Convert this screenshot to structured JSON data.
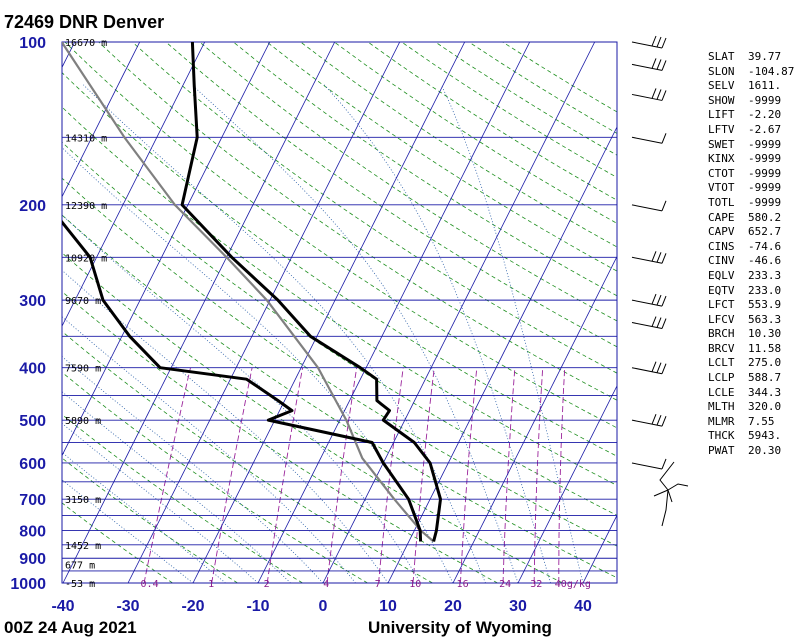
{
  "chart_data": {
    "type": "skew-t",
    "title": "72469 DNR Denver",
    "footer_left": "00Z 24 Aug 2021",
    "footer_right": "University of Wyoming",
    "x_ticks": [
      "-40",
      "-30",
      "-20",
      "-10",
      "0",
      "10",
      "20",
      "30",
      "40"
    ],
    "x_values": [
      -40,
      -30,
      -20,
      -10,
      0,
      10,
      20,
      30,
      40
    ],
    "xlim": [
      -40,
      45
    ],
    "ylim": [
      1000,
      100
    ],
    "y_log": true,
    "pressure_ticks": [
      {
        "p": 100,
        "label": "100"
      },
      {
        "p": 200,
        "label": "200"
      },
      {
        "p": 300,
        "label": "300"
      },
      {
        "p": 400,
        "label": "400"
      },
      {
        "p": 500,
        "label": "500"
      },
      {
        "p": 600,
        "label": "600"
      },
      {
        "p": 700,
        "label": "700"
      },
      {
        "p": 800,
        "label": "800"
      },
      {
        "p": 900,
        "label": "900"
      },
      {
        "p": 1000,
        "label": "1000"
      }
    ],
    "height_labels": [
      {
        "p": 100,
        "label": "16670 m"
      },
      {
        "p": 150,
        "label": "14310 m"
      },
      {
        "p": 200,
        "label": "12390 m"
      },
      {
        "p": 250,
        "label": "10920 m"
      },
      {
        "p": 300,
        "label": "9670 m"
      },
      {
        "p": 400,
        "label": "7590 m"
      },
      {
        "p": 500,
        "label": "5890 m"
      },
      {
        "p": 700,
        "label": "3150 m"
      },
      {
        "p": 850,
        "label": "1452 m"
      },
      {
        "p": 925,
        "label": "677 m"
      },
      {
        "p": 1000,
        "label": "-53 m"
      }
    ],
    "mixing_ratio_labels": [
      "0.4",
      "1",
      "2",
      "4",
      "7",
      "10",
      "16",
      "24",
      "32",
      "40g/kg"
    ],
    "temperature": [
      {
        "p": 838,
        "t": 13.8
      },
      {
        "p": 800,
        "t": 13.4
      },
      {
        "p": 700,
        "t": 11.6
      },
      {
        "p": 600,
        "t": 7.2
      },
      {
        "p": 550,
        "t": 3.2
      },
      {
        "p": 500,
        "t": -3.3
      },
      {
        "p": 480,
        "t": -3.1
      },
      {
        "p": 460,
        "t": -5.8
      },
      {
        "p": 420,
        "t": -7.5
      },
      {
        "p": 400,
        "t": -10.9
      },
      {
        "p": 350,
        "t": -21.0
      },
      {
        "p": 300,
        "t": -28.8
      },
      {
        "p": 250,
        "t": -39.2
      },
      {
        "p": 200,
        "t": -50.9
      },
      {
        "p": 150,
        "t": -53.8
      },
      {
        "p": 120,
        "t": -58.3
      },
      {
        "p": 100,
        "t": -61.9
      }
    ],
    "dewpoint": [
      {
        "p": 838,
        "t": 11.8
      },
      {
        "p": 800,
        "t": 10.9
      },
      {
        "p": 700,
        "t": 6.7
      },
      {
        "p": 600,
        "t": 0.0
      },
      {
        "p": 550,
        "t": -3.3
      },
      {
        "p": 500,
        "t": -21.0
      },
      {
        "p": 480,
        "t": -18.1
      },
      {
        "p": 460,
        "t": -21.0
      },
      {
        "p": 420,
        "t": -27.5
      },
      {
        "p": 400,
        "t": -41.7
      },
      {
        "p": 350,
        "t": -48.8
      },
      {
        "p": 300,
        "t": -55.7
      },
      {
        "p": 250,
        "t": -61.0
      },
      {
        "p": 200,
        "t": -71.5
      },
      {
        "p": 150,
        "t": -78.5
      },
      {
        "p": 120,
        "t": -85.7
      },
      {
        "p": 100,
        "t": -90.1
      }
    ],
    "parcel": [
      {
        "p": 838,
        "t": 13.8
      },
      {
        "p": 800,
        "t": 11.0
      },
      {
        "p": 700,
        "t": 4.5
      },
      {
        "p": 588,
        "t": -3.6
      },
      {
        "p": 500,
        "t": -9.0
      },
      {
        "p": 400,
        "t": -17.4
      },
      {
        "p": 300,
        "t": -30.5
      },
      {
        "p": 250,
        "t": -40.0
      },
      {
        "p": 200,
        "t": -52.0
      },
      {
        "p": 150,
        "t": -65.0
      },
      {
        "p": 100,
        "t": -82.0
      }
    ],
    "wind_barbs_pressures": [
      100,
      110,
      125,
      150,
      200,
      250,
      300,
      330,
      400,
      500,
      600
    ]
  },
  "indices": [
    {
      "name": "SLAT",
      "value": "39.77"
    },
    {
      "name": "SLON",
      "value": "-104.87"
    },
    {
      "name": "SELV",
      "value": "1611."
    },
    {
      "name": "SHOW",
      "value": "-9999"
    },
    {
      "name": "LIFT",
      "value": "-2.20"
    },
    {
      "name": "LFTV",
      "value": "-2.67"
    },
    {
      "name": "SWET",
      "value": "-9999"
    },
    {
      "name": "KINX",
      "value": "-9999"
    },
    {
      "name": "CTOT",
      "value": "-9999"
    },
    {
      "name": "VTOT",
      "value": "-9999"
    },
    {
      "name": "TOTL",
      "value": "-9999"
    },
    {
      "name": "CAPE",
      "value": "580.2"
    },
    {
      "name": "CAPV",
      "value": "652.7"
    },
    {
      "name": "CINS",
      "value": "-74.6"
    },
    {
      "name": "CINV",
      "value": "-46.6"
    },
    {
      "name": "EQLV",
      "value": "233.3"
    },
    {
      "name": "EQTV",
      "value": "233.0"
    },
    {
      "name": "LFCT",
      "value": "553.9"
    },
    {
      "name": "LFCV",
      "value": "563.3"
    },
    {
      "name": "BRCH",
      "value": "10.30"
    },
    {
      "name": "BRCV",
      "value": "11.58"
    },
    {
      "name": "LCLT",
      "value": "275.0"
    },
    {
      "name": "LCLP",
      "value": "588.7"
    },
    {
      "name": "LCLE",
      "value": "344.3"
    },
    {
      "name": "MLTH",
      "value": "320.0"
    },
    {
      "name": "MLMR",
      "value": "7.55"
    },
    {
      "name": "THCK",
      "value": "5943."
    },
    {
      "name": "PWAT",
      "value": "20.30"
    }
  ],
  "colors": {
    "isobar": "#1a1aa6",
    "isotherm": "#1a1aa6",
    "dry_adiabat": "#1f8f1f",
    "moist_adiabat": "#2a5fa8",
    "mixing_ratio": "#9b259b",
    "temperature": "#000000",
    "parcel": "#808080",
    "axis_label": "#1a1aa6"
  }
}
